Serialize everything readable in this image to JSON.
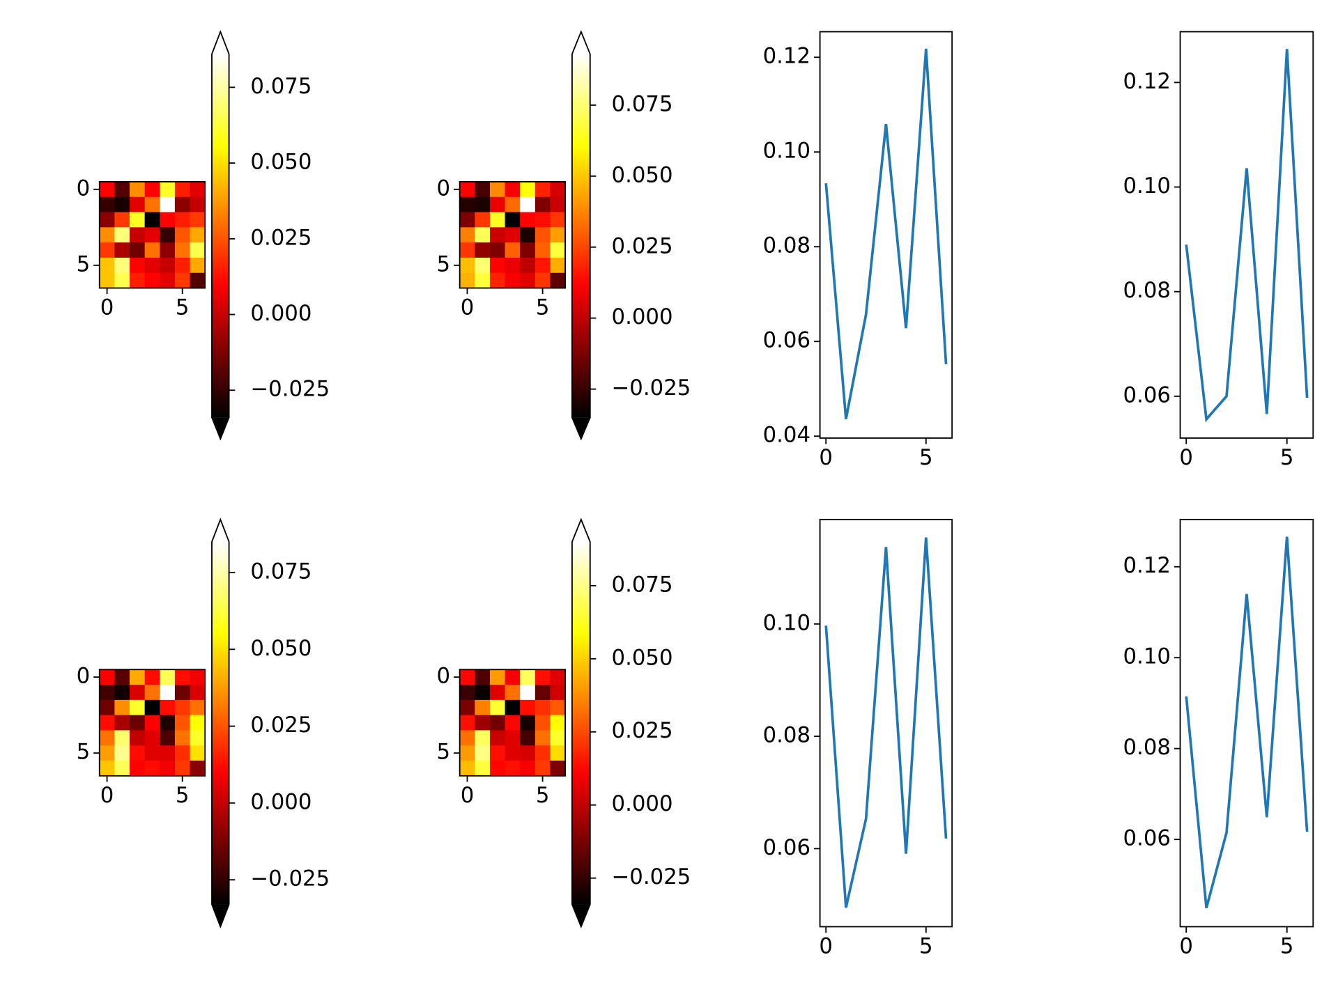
{
  "chart_data": [
    {
      "type": "heatmap",
      "cmap": "hot",
      "xlim": [
        -0.5,
        6.5
      ],
      "ylim": [
        6.5,
        -0.5
      ],
      "xticks": [
        0,
        5
      ],
      "yticks": [
        0,
        5
      ],
      "z": [
        [
          0.01,
          -0.02,
          0.035,
          0.01,
          0.06,
          0.015,
          0.005
        ],
        [
          -0.025,
          -0.03,
          0.005,
          0.03,
          0.086,
          -0.01,
          0.0
        ],
        [
          -0.01,
          0.02,
          0.06,
          -0.034,
          0.01,
          0.015,
          0.02
        ],
        [
          0.035,
          0.07,
          0.0,
          0.005,
          -0.025,
          0.025,
          0.04
        ],
        [
          0.02,
          -0.005,
          -0.015,
          0.03,
          -0.01,
          0.03,
          0.065
        ],
        [
          0.045,
          0.07,
          0.01,
          0.005,
          0.0,
          0.015,
          0.04
        ],
        [
          0.045,
          0.065,
          0.015,
          0.01,
          0.005,
          0.02,
          -0.02
        ]
      ],
      "colorbar": {
        "clim": [
          -0.034,
          0.086
        ],
        "extend": "both",
        "ticks": [
          {
            "value": -0.025,
            "label": "−0.025"
          },
          {
            "value": 0,
            "label": "0.000"
          },
          {
            "value": 0.025,
            "label": "0.025"
          },
          {
            "value": 0.05,
            "label": "0.050"
          },
          {
            "value": 0.075,
            "label": "0.075"
          }
        ]
      }
    },
    {
      "type": "heatmap",
      "cmap": "hot",
      "xlim": [
        -0.5,
        6.5
      ],
      "ylim": [
        6.5,
        -0.5
      ],
      "xticks": [
        0,
        5
      ],
      "yticks": [
        0,
        5
      ],
      "z": [
        [
          0.012,
          -0.022,
          0.038,
          0.01,
          0.062,
          0.018,
          0.004
        ],
        [
          -0.028,
          -0.03,
          0.008,
          0.032,
          0.093,
          -0.012,
          0.002
        ],
        [
          -0.012,
          0.022,
          0.065,
          -0.035,
          0.012,
          0.014,
          0.022
        ],
        [
          0.036,
          0.072,
          0.002,
          0.006,
          -0.03,
          0.028,
          0.042
        ],
        [
          0.022,
          -0.008,
          -0.012,
          0.03,
          -0.012,
          0.03,
          0.068
        ],
        [
          0.048,
          0.075,
          0.012,
          0.008,
          0.0,
          0.016,
          0.045
        ],
        [
          0.046,
          0.068,
          0.018,
          0.01,
          0.006,
          0.022,
          -0.018
        ]
      ],
      "colorbar": {
        "clim": [
          -0.035,
          0.093
        ],
        "extend": "both",
        "ticks": [
          {
            "value": -0.025,
            "label": "−0.025"
          },
          {
            "value": 0,
            "label": "0.000"
          },
          {
            "value": 0.025,
            "label": "0.025"
          },
          {
            "value": 0.05,
            "label": "0.050"
          },
          {
            "value": 0.075,
            "label": "0.075"
          }
        ]
      }
    },
    {
      "type": "line",
      "color": "#1f77b4",
      "x": [
        0,
        1,
        2,
        3,
        4,
        5,
        6
      ],
      "values": [
        0.0934,
        0.0436,
        0.0657,
        0.1059,
        0.0628,
        0.1218,
        0.0552
      ],
      "xlim": [
        -0.3,
        6.3
      ],
      "xticks": [
        0,
        5
      ],
      "ylim": [
        0.0396,
        0.1254
      ],
      "yticks": [
        0.04,
        0.06,
        0.08,
        {
          "value": 0.1,
          "label": "0.10"
        },
        0.12
      ]
    },
    {
      "type": "line",
      "color": "#1f77b4",
      "x": [
        0,
        1,
        2,
        3,
        4,
        5,
        6
      ],
      "values": [
        0.089,
        0.0556,
        0.06,
        0.1036,
        0.0566,
        0.1264,
        0.0597
      ],
      "xlim": [
        -0.3,
        6.3
      ],
      "xticks": [
        0,
        5
      ],
      "ylim": [
        0.052,
        0.1297
      ],
      "yticks": [
        0.06,
        0.08,
        {
          "value": 0.1,
          "label": "0.10"
        },
        0.12
      ]
    },
    {
      "type": "heatmap",
      "cmap": "hot",
      "xlim": [
        -0.5,
        6.5
      ],
      "ylim": [
        6.5,
        -0.5
      ],
      "xticks": [
        0,
        5
      ],
      "yticks": [
        0,
        5
      ],
      "z": [
        [
          0.01,
          -0.018,
          0.04,
          0.012,
          0.065,
          0.012,
          0.008
        ],
        [
          -0.022,
          -0.03,
          0.004,
          0.03,
          0.085,
          -0.015,
          0.004
        ],
        [
          -0.014,
          0.035,
          0.06,
          -0.033,
          0.012,
          0.02,
          0.03
        ],
        [
          0.012,
          -0.005,
          -0.015,
          0.01,
          -0.028,
          0.025,
          0.055
        ],
        [
          0.03,
          0.068,
          0.0,
          0.005,
          -0.02,
          0.03,
          0.06
        ],
        [
          0.038,
          0.072,
          0.012,
          0.005,
          0.005,
          0.018,
          0.05
        ],
        [
          0.045,
          0.065,
          0.01,
          0.012,
          0.008,
          0.02,
          -0.01
        ]
      ],
      "colorbar": {
        "clim": [
          -0.033,
          0.085
        ],
        "extend": "both",
        "ticks": [
          {
            "value": -0.025,
            "label": "−0.025"
          },
          {
            "value": 0,
            "label": "0.000"
          },
          {
            "value": 0.025,
            "label": "0.025"
          },
          {
            "value": 0.05,
            "label": "0.050"
          },
          {
            "value": 0.075,
            "label": "0.075"
          }
        ]
      }
    },
    {
      "type": "heatmap",
      "cmap": "hot",
      "xlim": [
        -0.5,
        6.5
      ],
      "ylim": [
        6.5,
        -0.5
      ],
      "xticks": [
        0,
        5
      ],
      "yticks": [
        0,
        5
      ],
      "z": [
        [
          0.012,
          -0.02,
          0.04,
          0.01,
          0.07,
          0.014,
          0.006
        ],
        [
          -0.024,
          -0.032,
          0.006,
          0.032,
          0.09,
          -0.016,
          0.003
        ],
        [
          -0.012,
          0.035,
          0.065,
          -0.034,
          0.014,
          0.02,
          0.028
        ],
        [
          0.014,
          -0.006,
          -0.014,
          0.012,
          -0.03,
          0.026,
          0.058
        ],
        [
          0.032,
          0.07,
          0.002,
          0.006,
          -0.022,
          0.032,
          0.064
        ],
        [
          0.04,
          0.075,
          0.014,
          0.006,
          0.004,
          0.02,
          0.052
        ],
        [
          0.046,
          0.066,
          0.012,
          0.014,
          0.01,
          0.022,
          -0.012
        ]
      ],
      "colorbar": {
        "clim": [
          -0.034,
          0.09
        ],
        "extend": "both",
        "ticks": [
          {
            "value": -0.025,
            "label": "−0.025"
          },
          {
            "value": 0,
            "label": "0.000"
          },
          {
            "value": 0.025,
            "label": "0.025"
          },
          {
            "value": 0.05,
            "label": "0.050"
          },
          {
            "value": 0.075,
            "label": "0.075"
          }
        ]
      }
    },
    {
      "type": "line",
      "color": "#1f77b4",
      "x": [
        0,
        1,
        2,
        3,
        4,
        5,
        6
      ],
      "values": [
        0.0997,
        0.0495,
        0.0653,
        0.1137,
        0.0591,
        0.1154,
        0.0618
      ],
      "xlim": [
        -0.3,
        6.3
      ],
      "xticks": [
        0,
        5
      ],
      "ylim": [
        0.0461,
        0.1186
      ],
      "yticks": [
        0.06,
        0.08,
        {
          "value": 0.1,
          "label": "0.10"
        }
      ]
    },
    {
      "type": "line",
      "color": "#1f77b4",
      "x": [
        0,
        1,
        2,
        3,
        4,
        5,
        6
      ],
      "values": [
        0.0915,
        0.0449,
        0.0615,
        0.114,
        0.0649,
        0.1266,
        0.0617
      ],
      "xlim": [
        -0.3,
        6.3
      ],
      "xticks": [
        0,
        5
      ],
      "ylim": [
        0.0408,
        0.1304
      ],
      "yticks": [
        0.06,
        0.08,
        {
          "value": 0.1,
          "label": "0.10"
        },
        0.12
      ]
    }
  ]
}
